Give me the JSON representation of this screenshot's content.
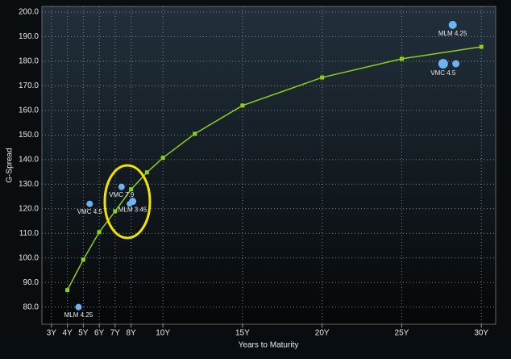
{
  "chart_data": {
    "type": "line",
    "ylabel": "G-Spread",
    "xlabel": "Years to Maturity",
    "xlim": [
      2.4,
      30.9
    ],
    "ylim": [
      73,
      202.3
    ],
    "xticks": [
      {
        "value": 3,
        "label": "3Y"
      },
      {
        "value": 4,
        "label": "4Y"
      },
      {
        "value": 5,
        "label": "5Y"
      },
      {
        "value": 6,
        "label": "6Y"
      },
      {
        "value": 7,
        "label": "7Y"
      },
      {
        "value": 8,
        "label": "8Y"
      },
      {
        "value": 10,
        "label": "10Y"
      },
      {
        "value": 15,
        "label": "15Y"
      },
      {
        "value": 20,
        "label": "20Y"
      },
      {
        "value": 25,
        "label": "25Y"
      },
      {
        "value": 30,
        "label": "30Y"
      }
    ],
    "yticks": [
      {
        "value": 80,
        "label": "80.0"
      },
      {
        "value": 90,
        "label": "90.0"
      },
      {
        "value": 100,
        "label": "100.0"
      },
      {
        "value": 110,
        "label": "110.0"
      },
      {
        "value": 120,
        "label": "120.0"
      },
      {
        "value": 130,
        "label": "130.0"
      },
      {
        "value": 140,
        "label": "140.0"
      },
      {
        "value": 150,
        "label": "150.0"
      },
      {
        "value": 160,
        "label": "160.0"
      },
      {
        "value": 170,
        "label": "170.0"
      },
      {
        "value": 180,
        "label": "180.0"
      },
      {
        "value": 190,
        "label": "190.0"
      },
      {
        "value": 200,
        "label": "200.0"
      }
    ],
    "grid": true,
    "series": [
      {
        "color": "#8ccf1e",
        "x": [
          4,
          5,
          6,
          7,
          8,
          9,
          10,
          12,
          15,
          20,
          25,
          30
        ],
        "values": [
          86.9,
          99.3,
          110.5,
          119,
          127.9,
          134.8,
          140.7,
          150.5,
          162,
          173.4,
          181,
          185.9
        ]
      }
    ],
    "bubbles": {
      "color": "#6db3f2",
      "labels": [
        "MLM 4.25",
        "VMC 4.5",
        "VMC 7.9",
        null,
        "MLM 3.45",
        "MLM 4.25",
        "VMC 4.5",
        null
      ],
      "x": [
        4.7,
        5.4,
        7.4,
        7.9,
        8.1,
        28.2,
        27.6,
        28.4
      ],
      "values": [
        80,
        122,
        128.9,
        122,
        123,
        194.8,
        179,
        179
      ],
      "size": [
        4,
        4,
        4,
        3.5,
        4.5,
        5,
        6,
        4.5
      ]
    }
  }
}
